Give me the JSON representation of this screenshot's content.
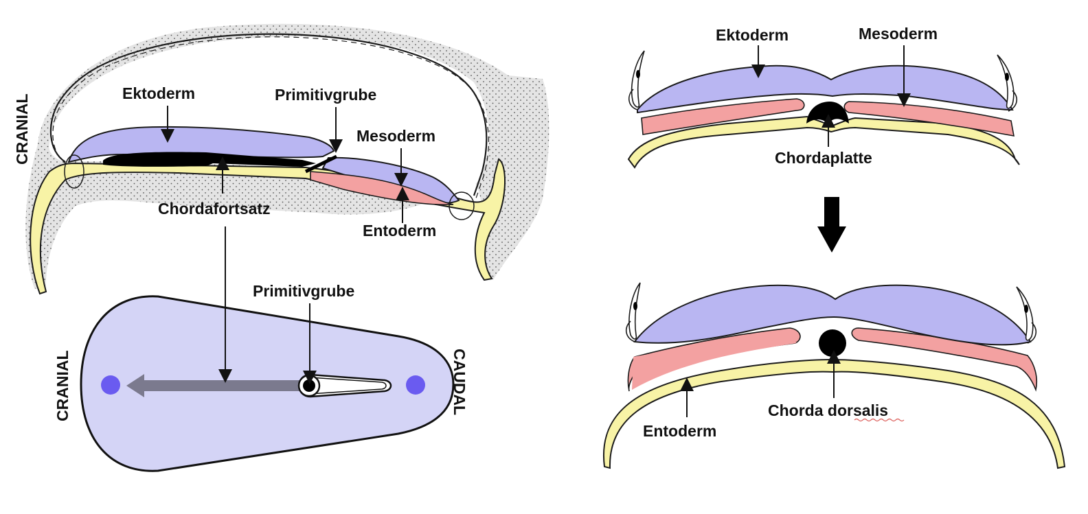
{
  "colors": {
    "ectoderm": "#b9b6f2",
    "mesoderm": "#f3a1a1",
    "endoderm": "#f8f3a6",
    "embryonic_disc": "#d4d4f6",
    "dots": "#6a5bf0",
    "amnion_fill": "#e3e3e3",
    "chorda": "#000000",
    "outline": "#1a1a1a"
  },
  "sagittal": {
    "orientation_label": "CRANIAL",
    "labels": {
      "ektoderm": "Ektoderm",
      "primitivgrube": "Primitivgrube",
      "mesoderm": "Mesoderm",
      "chordafortsatz": "Chordafortsatz",
      "entoderm": "Entoderm"
    }
  },
  "disc": {
    "label_cranial": "CRANIAL",
    "label_caudal": "CAUDAL",
    "label_primitivgrube": "Primitivgrube"
  },
  "cross_top": {
    "labels": {
      "ektoderm": "Ektoderm",
      "mesoderm": "Mesoderm",
      "chordaplatte": "Chordaplatte"
    }
  },
  "cross_bottom": {
    "labels": {
      "entoderm": "Entoderm",
      "chorda_dorsalis": "Chorda dorsalis"
    }
  },
  "transition_arrow_icon": "arrow-down-icon"
}
